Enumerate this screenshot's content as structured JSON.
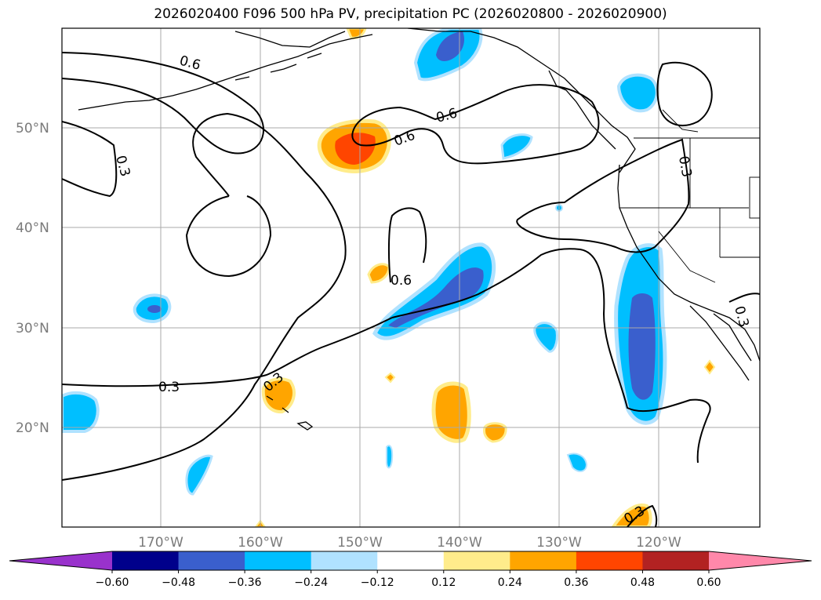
{
  "title": "2026020400 F096 500 hPa PV, precipitation PC (2026020800 - 2026020900)",
  "map": {
    "lon_ticks": [
      "170°W",
      "160°W",
      "150°W",
      "140°W",
      "130°W",
      "120°W"
    ],
    "lat_ticks": [
      "50°N",
      "40°N",
      "30°N",
      "20°N"
    ],
    "contour_labels": [
      "0.6",
      "0.6",
      "0.6",
      "0.6",
      "0.3",
      "0.3",
      "0.3",
      "0.3",
      "0.3",
      "0.3"
    ]
  },
  "colorbar": {
    "levels": [
      "−0.60",
      "−0.48",
      "−0.36",
      "−0.24",
      "−0.12",
      "0.12",
      "0.24",
      "0.36",
      "0.48",
      "0.60"
    ],
    "colors": [
      "#9932cc",
      "#00008b",
      "#3a5fcd",
      "#00bfff",
      "#b0e2ff",
      "#ffffff",
      "#ffec8b",
      "#ffa500",
      "#ff4500",
      "#b22222",
      "#ff88aa"
    ]
  },
  "chart_data": {
    "type": "map",
    "title": "2026020400 F096 500 hPa PV, precipitation PC (2026020800 - 2026020900)",
    "fields": [
      "500 hPa PV (contours)",
      "precipitation PC (shaded)"
    ],
    "lon_range": [
      -180,
      -110
    ],
    "lat_range": [
      10,
      60
    ],
    "pv_contour_levels": [
      0.3,
      0.6
    ],
    "shading_levels": [
      -0.6,
      -0.48,
      -0.36,
      -0.24,
      -0.12,
      0.12,
      0.24,
      0.36,
      0.48,
      0.6
    ]
  }
}
